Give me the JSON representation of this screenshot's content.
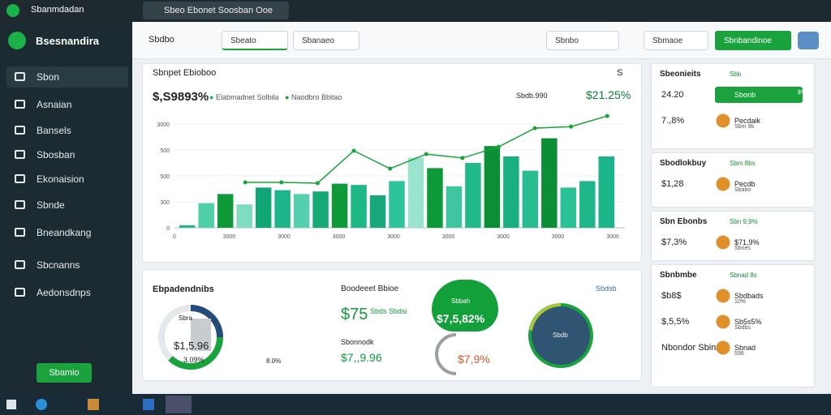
{
  "titlebar": {
    "app": "Sbanmdadan",
    "tab": "Sbeo Ebonet Soosban Ooe"
  },
  "sidebar": {
    "brand": "Bsesnandira",
    "items": [
      "Sbon",
      "Asnaian",
      "Bansels",
      "Sbosban",
      "Ekonaision",
      "Sbnde",
      "Bneandkang",
      "Sbcnanns",
      "Aedonsdnps"
    ],
    "button": "Sbamio"
  },
  "toolbar": {
    "search": "Sbdbo",
    "filter1": "Sbeato",
    "filter2": "Sbanaeo",
    "filter3": "Sbnbo",
    "filter4": "Sbmaoe",
    "button": "Sbnbandinoe"
  },
  "main_card": {
    "title": "Sbnpet Ebioboo",
    "value": "$,S9893%",
    "legend": [
      "Elabmadnet Solbila",
      "Naodbro Bbitao"
    ],
    "stat1": "Sbdb.990",
    "stat2": "$21.25%",
    "close": "S"
  },
  "chart_data": {
    "type": "bar",
    "ylim": [
      0,
      4
    ],
    "yticks": [
      {
        "value": 0,
        "label": "0"
      },
      {
        "value": 1,
        "label": "300"
      },
      {
        "value": 2,
        "label": "500"
      },
      {
        "value": 3,
        "label": "500"
      },
      {
        "value": 4,
        "label": "3000"
      }
    ],
    "x_labels": [
      "0",
      "3000",
      "3000",
      "3000",
      "3000",
      "3000",
      "3000",
      "3000",
      "3000"
    ],
    "values": [
      0.1,
      0.95,
      1.3,
      0.9,
      1.55,
      1.45,
      1.3,
      1.4,
      1.7,
      1.65,
      1.25,
      1.8,
      2.7,
      2.3,
      1.6,
      2.5,
      3.15,
      2.75,
      2.2,
      3.45,
      1.55,
      1.8,
      2.75
    ],
    "colors": [
      "#2bb58a",
      "#4fcfa8",
      "#0f9a3a",
      "#7fdcc0",
      "#11a676",
      "#1fb58a",
      "#56cfae",
      "#16a877",
      "#0f9a3a",
      "#1db886",
      "#17a97c",
      "#2ec49b",
      "#9ae3cf",
      "#0f9a3a",
      "#3dc69f",
      "#21b98a",
      "#0b8f34",
      "#19b07f",
      "#28bd90",
      "#0b8f34",
      "#2cc297",
      "#1fb78a",
      "#1bb58a"
    ],
    "line": {
      "color": "#17a33a",
      "values": [
        1.75,
        1.75,
        1.72,
        2.97,
        2.28,
        2.84,
        2.69,
        3.12,
        3.84,
        3.9,
        4.31
      ]
    }
  },
  "bottom_card": {
    "title": "Ebpadendnibs",
    "donut_tag": "Sbra",
    "donut_value": "$1,5.96",
    "donut_sub": "3.09%",
    "donut_side": "8.0%",
    "mid_title": "Boodeeet Bbioe",
    "mid_value": "$75",
    "mid_tag": "Sbds Sbdsi",
    "mid_sub_title": "Sbonnodk",
    "mid_sub_value": "$7,,9.96",
    "badge_tag": "Sbbah",
    "badge_value": "$7,5,82%",
    "ring_value": "$7,9%",
    "right_filter": "Sbdsb",
    "pie_label": "Sbdb"
  },
  "right_panels": [
    {
      "title": "Sbeonieits",
      "tag": "Sbb",
      "rows": [
        {
          "value": "24.20",
          "label": "Sbonb",
          "extra": "$%"
        },
        {
          "value": "7.,8%",
          "label": "Pecdaik",
          "extra": "Sbm 9b"
        }
      ]
    },
    {
      "title": "Sbodlokbuy",
      "tag": "Sbm 8bs",
      "rows": [
        {
          "value": "$1,28",
          "label": "Pecdb",
          "extra": "Sbabo"
        }
      ]
    },
    {
      "title": "Sbn Ebonbs",
      "tag": "Sbn 9,9%",
      "rows": [
        {
          "value": "$7,3%",
          "label": "$71,9%",
          "extra": "Sbnes"
        }
      ]
    },
    {
      "title": "Sbnbmbe",
      "tag": "Sbnad 8s",
      "rows": [
        {
          "value": "$b8$",
          "label": "Sbdbads",
          "extra": "10%"
        },
        {
          "value": "$,5,5%",
          "label": "Sb5s5%",
          "extra": "Sbdbs"
        },
        {
          "value": "Nbondor Sbins",
          "label": "Sbnad",
          "extra": "598"
        }
      ]
    }
  ]
}
